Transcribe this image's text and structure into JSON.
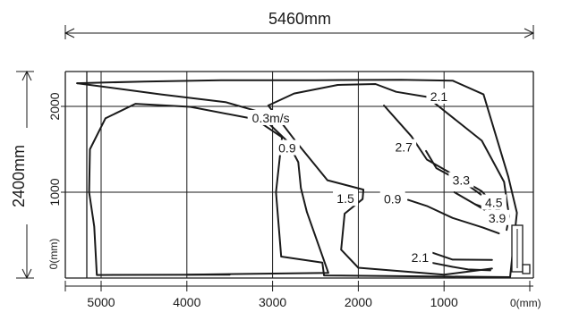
{
  "chart_data": {
    "type": "contour",
    "title": "",
    "width_dimension_label": "5460mm",
    "height_dimension_label": "2400mm",
    "x_unit_label": "0(mm)",
    "y_unit_label": "0(mm)",
    "x_axis": {
      "reversed": true,
      "range": [
        0,
        5460
      ],
      "tick_values": [
        5000,
        4000,
        3000,
        2000,
        1000
      ],
      "tick_labels": [
        "5000",
        "4000",
        "3000",
        "2000",
        "1000"
      ]
    },
    "y_axis": {
      "range": [
        0,
        2400
      ],
      "tick_values": [
        1000,
        2000
      ],
      "tick_labels": [
        "1000",
        "2000"
      ]
    },
    "grid": true,
    "contour_labels": [
      {
        "text": "0.3m/s",
        "value": 0.3,
        "x": 3020,
        "y": 1865
      },
      {
        "text": "0.9",
        "value": 0.9,
        "x": 2830,
        "y": 1515
      },
      {
        "text": "1.5",
        "value": 1.5,
        "x": 2150,
        "y": 925
      },
      {
        "text": "2.1",
        "value": 2.1,
        "x": 1060,
        "y": 2115
      },
      {
        "text": "2.7",
        "value": 2.7,
        "x": 1470,
        "y": 1525
      },
      {
        "text": "3.3",
        "value": 3.3,
        "x": 800,
        "y": 1140
      },
      {
        "text": "4.5",
        "value": 4.5,
        "x": 420,
        "y": 880
      },
      {
        "text": "3.9",
        "value": 3.9,
        "x": 380,
        "y": 700
      },
      {
        "text": "0.9",
        "value": 0.9,
        "x": 1600,
        "y": 920
      },
      {
        "text": "2.1",
        "value": 2.1,
        "x": 1280,
        "y": 240
      }
    ],
    "contours": [
      {
        "value": 0.3,
        "points": [
          [
            5280,
            2270
          ],
          [
            4500,
            2290
          ],
          [
            3600,
            2305
          ],
          [
            2500,
            2305
          ],
          [
            1500,
            2310
          ],
          [
            900,
            2300
          ],
          [
            540,
            2140
          ],
          [
            250,
            1180
          ],
          [
            150,
            760
          ],
          [
            230,
            10
          ],
          [
            2400,
            30
          ],
          [
            2420,
            180
          ],
          [
            2900,
            250
          ],
          [
            2960,
            1000
          ],
          [
            2890,
            1640
          ],
          [
            3200,
            1850
          ],
          [
            3960,
            1995
          ],
          [
            4600,
            2030
          ],
          [
            4950,
            1860
          ],
          [
            5130,
            1500
          ],
          [
            5140,
            1000
          ],
          [
            5080,
            600
          ],
          [
            5050,
            35
          ],
          [
            3500,
            40
          ]
        ]
      },
      {
        "value": 0.9,
        "points": [
          [
            5280,
            2270
          ],
          [
            4300,
            2140
          ],
          [
            3550,
            2050
          ],
          [
            3200,
            1950
          ],
          [
            2830,
            1595
          ],
          [
            2700,
            1350
          ],
          [
            2670,
            1050
          ],
          [
            2600,
            770
          ],
          [
            2350,
            60
          ],
          [
            3200,
            50
          ],
          [
            4000,
            40
          ]
        ]
      },
      {
        "value": 1.5,
        "points": [
          [
            2240,
            2250
          ],
          [
            2750,
            2150
          ],
          [
            3050,
            2010
          ],
          [
            2720,
            1580
          ],
          [
            2360,
            1140
          ],
          [
            1940,
            1030
          ],
          [
            1950,
            920
          ],
          [
            2160,
            750
          ],
          [
            2200,
            330
          ],
          [
            2000,
            120
          ],
          [
            1000,
            40
          ],
          [
            440,
            110
          ]
        ]
      },
      {
        "value": 2.1,
        "points": [
          [
            2240,
            2250
          ],
          [
            1800,
            2260
          ],
          [
            1560,
            2170
          ],
          [
            1200,
            2110
          ],
          [
            560,
            1600
          ],
          [
            300,
            1120
          ],
          [
            265,
            880
          ],
          [
            240,
            720
          ],
          [
            270,
            560
          ]
        ]
      },
      {
        "value": 2.1,
        "points": [
          [
            440,
            210
          ],
          [
            900,
            215
          ],
          [
            1150,
            300
          ],
          [
            1250,
            270
          ],
          [
            1400,
            250
          ],
          [
            1200,
            190
          ],
          [
            900,
            130
          ],
          [
            720,
            100
          ],
          [
            460,
            90
          ]
        ]
      },
      {
        "value": 2.7,
        "points": [
          [
            1700,
            2010
          ],
          [
            1380,
            1650
          ],
          [
            1200,
            1380
          ],
          [
            850,
            1180
          ],
          [
            560,
            1010
          ],
          [
            330,
            760
          ],
          [
            300,
            660
          ]
        ]
      },
      {
        "value": 3.3,
        "points": [
          [
            1210,
            1480
          ],
          [
            1090,
            1280
          ],
          [
            720,
            1080
          ],
          [
            440,
            880
          ],
          [
            330,
            700
          ]
        ]
      },
      {
        "value": 3.9,
        "points": [
          [
            880,
            1000
          ],
          [
            640,
            860
          ],
          [
            400,
            720
          ],
          [
            330,
            640
          ]
        ]
      },
      {
        "value": 4.5,
        "points": [
          [
            640,
            860
          ],
          [
            470,
            800
          ],
          [
            350,
            660
          ]
        ]
      },
      {
        "value": 0.9,
        "points": [
          [
            1420,
            910
          ],
          [
            1200,
            840
          ],
          [
            900,
            700
          ],
          [
            550,
            590
          ],
          [
            360,
            520
          ]
        ]
      }
    ]
  }
}
